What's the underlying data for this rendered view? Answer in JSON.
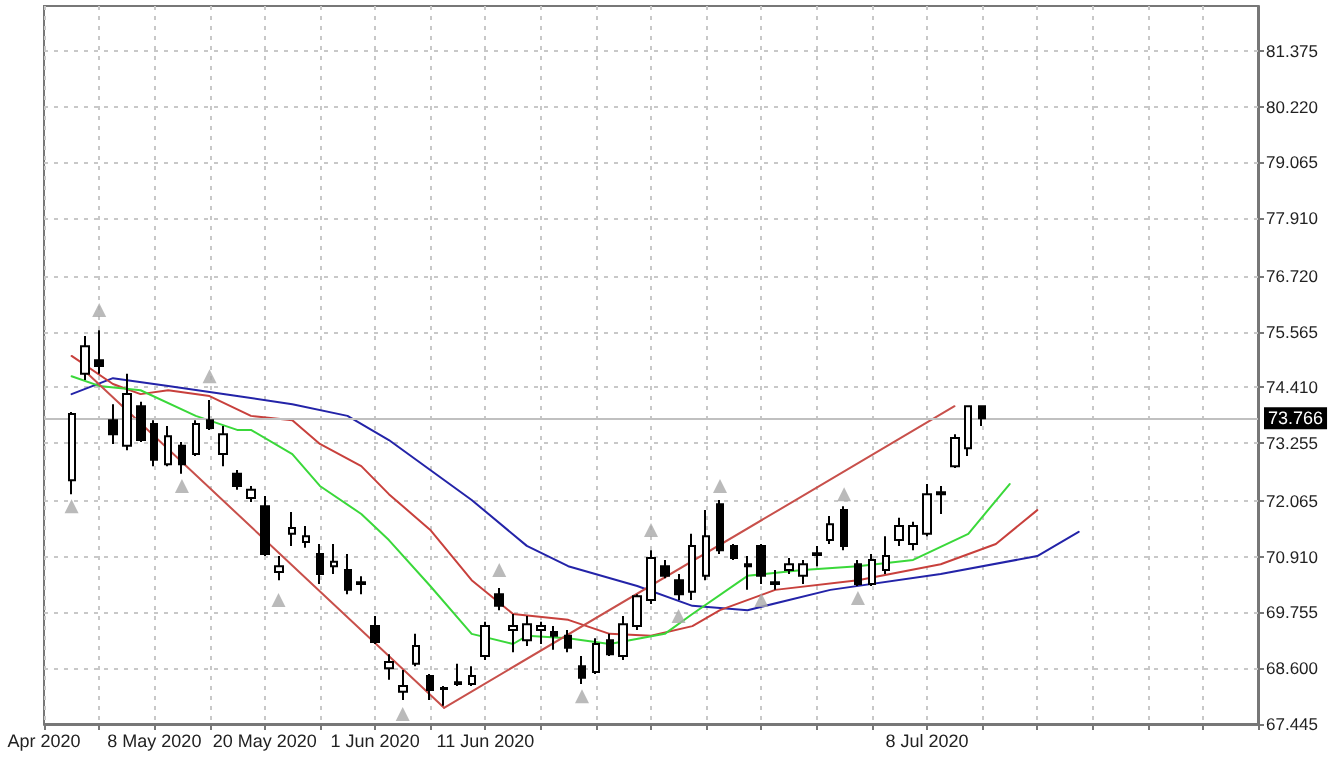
{
  "chart_data": {
    "type": "candlestick",
    "ylim": [
      67.445,
      82.3
    ],
    "grid": true,
    "categories": [
      "Apr 2020",
      null,
      null,
      null,
      null,
      null,
      null,
      null,
      "8 May 2020",
      null,
      null,
      null,
      null,
      null,
      null,
      null,
      "20 May 2020",
      null,
      null,
      null,
      null,
      null,
      null,
      null,
      "1 Jun 2020",
      null,
      null,
      null,
      null,
      null,
      null,
      null,
      "11 Jun 2020",
      null,
      null,
      null,
      null,
      null,
      null,
      null,
      null,
      null,
      null,
      null,
      null,
      null,
      null,
      null,
      null,
      null,
      null,
      null,
      null,
      null,
      null,
      null,
      null,
      null,
      null,
      null,
      null,
      null,
      null,
      null,
      "8 Jul 2020",
      null,
      null,
      null,
      null,
      null,
      null,
      null,
      null,
      null,
      null,
      null,
      null,
      null,
      null,
      null,
      null,
      null,
      null,
      null,
      null,
      null,
      null,
      null,
      null
    ],
    "yticks": [
      67.445,
      {
        "value": 68.6,
        "label": "68.600"
      },
      69.755,
      {
        "value": 70.91,
        "label": "70.910"
      },
      72.065,
      73.255,
      {
        "value": 74.41,
        "label": "74.410"
      },
      75.565,
      {
        "value": 76.72,
        "label": "76.720"
      },
      {
        "value": 77.91,
        "label": "77.910"
      },
      79.065,
      {
        "value": 80.22,
        "label": "80.220"
      },
      81.375
    ],
    "ref_lines": [
      {
        "axis": "y",
        "value": 73.766,
        "label": "73.766",
        "color": "#c0c0c0"
      }
    ],
    "series": [
      {
        "type": "line",
        "color": "#2323a8",
        "marker": "none",
        "values": [
          null,
          null,
          74.27,
          null,
          null,
          74.6,
          null,
          null,
          null,
          74.44,
          null,
          null,
          null,
          null,
          74.23,
          null,
          null,
          null,
          74.06,
          null,
          null,
          null,
          73.82,
          null,
          null,
          73.32,
          null,
          null,
          72.7,
          null,
          null,
          72.08,
          null,
          null,
          null,
          71.13,
          null,
          null,
          70.71,
          null,
          null,
          null,
          null,
          70.3,
          null,
          null,
          null,
          69.89,
          null,
          null,
          null,
          69.8,
          null,
          null,
          null,
          null,
          null,
          70.22,
          null,
          null,
          null,
          null,
          null,
          null,
          null,
          70.55,
          null,
          null,
          null,
          null,
          null,
          null,
          70.92,
          null,
          null,
          71.42,
          null,
          null,
          null,
          null,
          null,
          null,
          null,
          null,
          null,
          null,
          null,
          null,
          null
        ]
      },
      {
        "type": "line",
        "color": "#c8403c",
        "marker": "none",
        "values": [
          null,
          null,
          75.06,
          null,
          null,
          74.48,
          null,
          74.27,
          null,
          74.35,
          null,
          null,
          74.23,
          null,
          null,
          73.82,
          null,
          null,
          73.73,
          null,
          73.24,
          null,
          null,
          72.78,
          null,
          72.2,
          null,
          null,
          71.46,
          null,
          null,
          70.42,
          null,
          null,
          69.72,
          null,
          null,
          null,
          69.6,
          null,
          null,
          69.31,
          null,
          null,
          69.27,
          null,
          null,
          69.47,
          null,
          69.8,
          null,
          null,
          null,
          70.22,
          null,
          null,
          null,
          null,
          null,
          70.42,
          null,
          null,
          null,
          null,
          null,
          70.75,
          null,
          null,
          null,
          71.17,
          null,
          null,
          71.87,
          null,
          null,
          null,
          null,
          null,
          null,
          null,
          null,
          null,
          null,
          null,
          null,
          null,
          null,
          null,
          null
        ]
      },
      {
        "type": "line",
        "color": "#3ad83a",
        "marker": "none",
        "values": [
          null,
          null,
          74.64,
          null,
          74.44,
          null,
          null,
          74.35,
          null,
          null,
          null,
          73.82,
          null,
          null,
          73.53,
          73.53,
          null,
          null,
          73.03,
          null,
          72.37,
          null,
          null,
          71.79,
          null,
          71.25,
          null,
          null,
          70.3,
          null,
          null,
          69.31,
          null,
          null,
          69.1,
          69.27,
          null,
          null,
          69.22,
          null,
          null,
          69.1,
          null,
          null,
          null,
          69.31,
          null,
          69.72,
          null,
          null,
          null,
          70.51,
          null,
          null,
          null,
          70.63,
          null,
          null,
          null,
          70.71,
          null,
          null,
          null,
          70.84,
          null,
          null,
          null,
          71.38,
          null,
          null,
          72.41,
          null,
          null,
          null,
          null,
          null,
          null,
          null,
          null,
          null,
          null,
          null,
          null,
          null,
          null,
          null,
          null,
          null,
          null
        ]
      },
      {
        "type": "line",
        "color": "#c8504b",
        "marker": "none",
        "values": [
          null,
          null,
          null,
          74.74,
          null,
          null,
          null,
          null,
          null,
          null,
          null,
          null,
          null,
          null,
          null,
          null,
          null,
          null,
          null,
          null,
          null,
          null,
          null,
          null,
          null,
          null,
          null,
          null,
          null,
          67.78,
          null,
          null,
          null,
          null,
          null,
          null,
          null,
          null,
          null,
          null,
          null,
          null,
          null,
          null,
          null,
          null,
          null,
          null,
          null,
          null,
          null,
          null,
          null,
          null,
          null,
          null,
          null,
          null,
          null,
          null,
          null,
          null,
          null,
          null,
          null,
          null,
          null,
          null,
          null,
          null,
          null,
          null,
          null,
          null,
          null,
          null,
          null,
          null,
          null,
          null,
          null,
          null,
          null,
          null,
          null,
          null,
          null,
          null,
          null
        ]
      },
      {
        "type": "line",
        "color": "#c8504b",
        "marker": "none",
        "values": [
          null,
          null,
          null,
          null,
          null,
          null,
          null,
          null,
          null,
          null,
          null,
          null,
          null,
          null,
          null,
          null,
          null,
          null,
          null,
          null,
          null,
          null,
          null,
          null,
          null,
          null,
          null,
          null,
          null,
          67.78,
          null,
          null,
          null,
          null,
          null,
          null,
          null,
          null,
          null,
          null,
          null,
          null,
          null,
          null,
          null,
          null,
          null,
          null,
          null,
          null,
          null,
          null,
          null,
          null,
          null,
          null,
          null,
          null,
          null,
          null,
          null,
          null,
          null,
          null,
          null,
          null,
          74.02,
          null,
          null,
          null,
          null,
          null,
          null,
          null,
          null,
          null,
          null,
          null,
          null,
          null,
          null,
          null,
          null,
          null,
          null,
          null,
          null,
          null,
          null
        ]
      },
      {
        "type": "scatter",
        "color": "#a9a9a9",
        "marker": "triangle",
        "values": [
          null,
          null,
          null,
          null,
          76.01,
          null,
          null,
          null,
          null,
          null,
          null,
          null,
          74.64,
          null,
          null,
          null,
          null,
          null,
          null,
          null,
          null,
          null,
          null,
          null,
          null,
          null,
          null,
          null,
          null,
          null,
          null,
          null,
          null,
          70.63,
          null,
          null,
          null,
          null,
          null,
          null,
          null,
          null,
          null,
          null,
          71.46,
          null,
          null,
          null,
          null,
          72.37,
          null,
          null,
          null,
          null,
          null,
          null,
          null,
          null,
          72.2,
          null,
          null,
          null,
          null,
          null,
          null,
          null,
          null,
          null,
          null,
          null,
          null,
          null,
          null,
          null,
          null,
          null,
          null,
          null,
          null,
          null,
          null,
          null,
          null,
          null,
          null,
          null,
          null,
          null,
          null
        ]
      },
      {
        "type": "scatter",
        "color": "#a9a9a9",
        "marker": "triangle",
        "values": [
          null,
          null,
          71.95,
          null,
          null,
          null,
          null,
          null,
          null,
          null,
          72.37,
          null,
          null,
          null,
          null,
          null,
          null,
          70.01,
          null,
          null,
          null,
          null,
          null,
          null,
          null,
          null,
          67.65,
          null,
          null,
          null,
          null,
          null,
          null,
          null,
          null,
          null,
          null,
          null,
          null,
          68.02,
          null,
          null,
          null,
          null,
          null,
          null,
          69.68,
          null,
          null,
          null,
          null,
          null,
          70.01,
          null,
          null,
          null,
          null,
          null,
          null,
          70.05,
          null,
          null,
          null,
          null,
          null,
          null,
          null,
          null,
          null,
          null,
          null,
          null,
          null,
          null,
          null,
          null,
          null,
          null,
          null,
          null,
          null,
          null,
          null,
          null,
          null,
          null,
          null,
          null,
          null
        ]
      },
      {
        "color": "#000000",
        "ohlc": [
          null,
          null,
          [
            72.49,
            73.9,
            72.2,
            73.86
          ],
          [
            74.69,
            75.47,
            74.56,
            75.26
          ],
          [
            74.97,
            75.59,
            74.69,
            74.85
          ],
          [
            73.73,
            74.06,
            73.24,
            73.44
          ],
          [
            73.2,
            74.69,
            73.11,
            74.27
          ],
          [
            74.02,
            74.11,
            73.28,
            73.32
          ],
          [
            73.65,
            73.73,
            72.78,
            72.91
          ],
          [
            72.82,
            73.61,
            72.78,
            73.4
          ],
          [
            73.2,
            73.28,
            72.62,
            72.82
          ],
          [
            73.03,
            73.73,
            72.99,
            73.65
          ],
          [
            73.73,
            74.15,
            73.53,
            73.57
          ],
          [
            73.03,
            73.61,
            72.78,
            73.44
          ],
          [
            72.62,
            72.7,
            72.29,
            72.37
          ],
          [
            72.12,
            72.37,
            72.04,
            72.29
          ],
          [
            71.95,
            72.16,
            70.92,
            70.96
          ],
          [
            70.59,
            70.92,
            70.42,
            70.71
          ],
          [
            71.38,
            71.83,
            71.13,
            71.5
          ],
          [
            71.21,
            71.54,
            71.09,
            71.33
          ],
          [
            70.96,
            71.17,
            70.34,
            70.55
          ],
          [
            70.71,
            71.17,
            70.55,
            70.8
          ],
          [
            70.63,
            70.96,
            70.13,
            70.22
          ],
          [
            70.38,
            70.5,
            70.13,
            70.34
          ],
          [
            69.47,
            69.68,
            69.1,
            69.14
          ],
          [
            68.6,
            68.89,
            68.36,
            68.73
          ],
          [
            68.11,
            68.56,
            67.94,
            68.23
          ],
          [
            68.69,
            69.31,
            68.64,
            69.06
          ],
          [
            68.44,
            68.48,
            67.94,
            68.15
          ],
          [
            68.19,
            68.23,
            67.82,
            68.17
          ],
          [
            68.27,
            68.69,
            68.23,
            68.31
          ],
          [
            68.27,
            68.64,
            68.23,
            68.44
          ],
          [
            68.85,
            69.56,
            68.77,
            69.47
          ],
          [
            70.13,
            70.26,
            69.8,
            69.89
          ],
          [
            69.39,
            69.72,
            68.93,
            69.47
          ],
          [
            69.18,
            69.68,
            69.06,
            69.51
          ],
          [
            69.39,
            69.56,
            69.1,
            69.47
          ],
          [
            69.35,
            69.47,
            68.98,
            69.27
          ],
          [
            69.27,
            69.39,
            68.93,
            69.02
          ],
          [
            68.64,
            68.85,
            68.27,
            68.4
          ],
          [
            68.52,
            69.22,
            68.48,
            69.1
          ],
          [
            69.18,
            69.31,
            68.85,
            68.89
          ],
          [
            68.85,
            69.68,
            68.77,
            69.51
          ],
          [
            69.47,
            70.13,
            69.39,
            70.09
          ],
          [
            70.01,
            71.04,
            69.93,
            70.88
          ],
          [
            70.71,
            70.84,
            70.46,
            70.51
          ],
          [
            70.42,
            70.55,
            70.01,
            70.13
          ],
          [
            70.18,
            71.38,
            70.01,
            71.13
          ],
          [
            70.51,
            71.87,
            70.42,
            71.33
          ],
          [
            71.99,
            72.08,
            70.96,
            71.04
          ],
          [
            71.13,
            71.17,
            70.84,
            70.88
          ],
          [
            70.75,
            70.92,
            70.22,
            70.71
          ],
          [
            71.13,
            71.17,
            70.34,
            70.51
          ],
          [
            70.38,
            70.63,
            70.22,
            70.34
          ],
          [
            70.63,
            70.88,
            70.55,
            70.75
          ],
          [
            70.51,
            70.84,
            70.34,
            70.75
          ],
          [
            70.98,
            71.13,
            70.71,
            70.94
          ],
          [
            71.25,
            71.75,
            71.17,
            71.58
          ],
          [
            71.87,
            71.95,
            71.04,
            71.13
          ],
          [
            70.75,
            70.84,
            70.3,
            70.34
          ],
          [
            70.34,
            70.96,
            70.3,
            70.84
          ],
          [
            70.63,
            71.33,
            70.55,
            70.92
          ],
          [
            71.25,
            71.71,
            71.13,
            71.54
          ],
          [
            71.17,
            71.63,
            71.04,
            71.54
          ],
          [
            71.38,
            72.41,
            71.33,
            72.2
          ],
          [
            72.2,
            72.37,
            71.79,
            72.24
          ],
          [
            72.78,
            73.44,
            72.74,
            73.36
          ],
          [
            73.15,
            74.02,
            72.99,
            74.02
          ],
          [
            74.02,
            74.02,
            73.61,
            73.77
          ],
          null,
          null,
          null,
          null,
          null,
          null,
          null,
          null,
          null,
          null,
          null,
          null,
          null,
          null,
          null,
          null,
          null,
          null,
          null,
          null
        ]
      }
    ]
  }
}
